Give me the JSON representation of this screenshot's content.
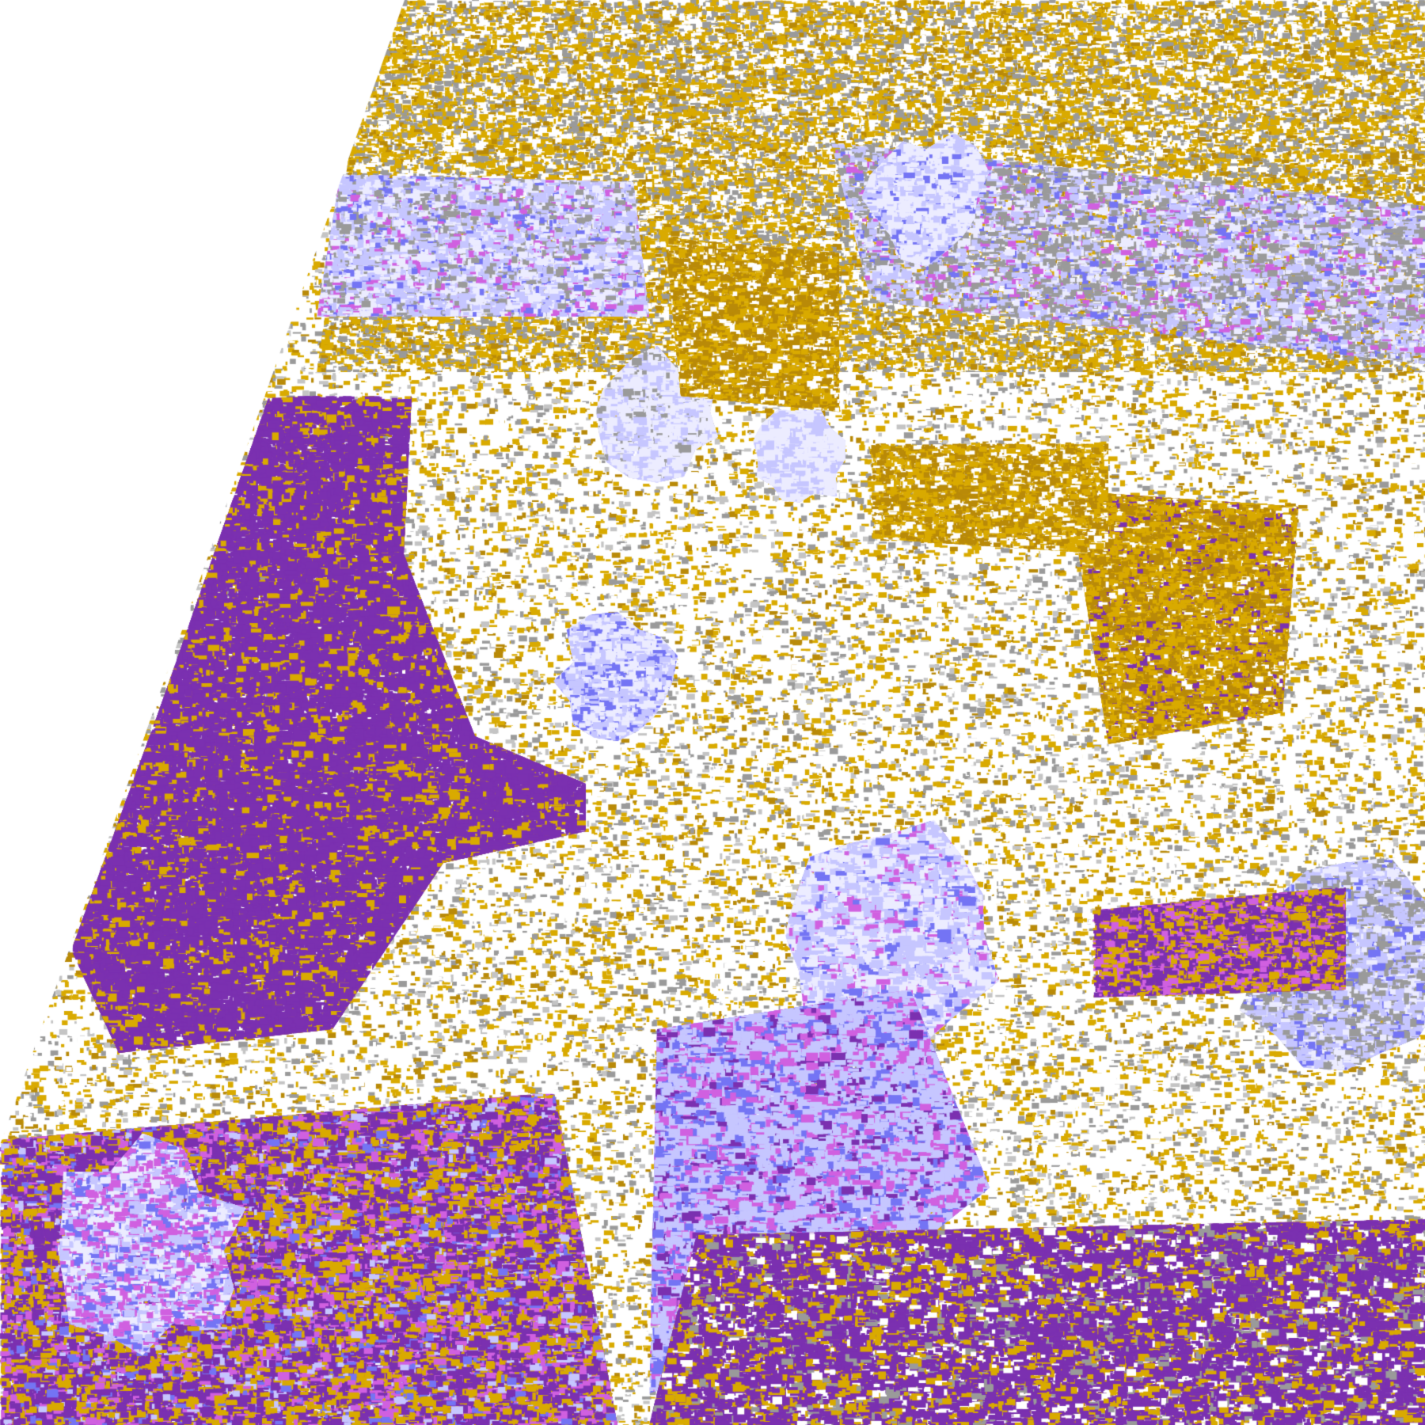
{
  "map": {
    "kind": "satellite-cloud-classification",
    "palette": {
      "no_data": "#ffffff",
      "clear": "#ffffff",
      "ocean_purple": "#7b30b0",
      "gold": "#d9aa00",
      "dark_gold": "#b98a08",
      "gray": "#9a9a9a",
      "light_gray": "#c4c4c4",
      "lavender": "#c6c6ff",
      "pale_lavender": "#ececff",
      "blue": "#7474f4",
      "magenta": "#d060e0"
    }
  }
}
